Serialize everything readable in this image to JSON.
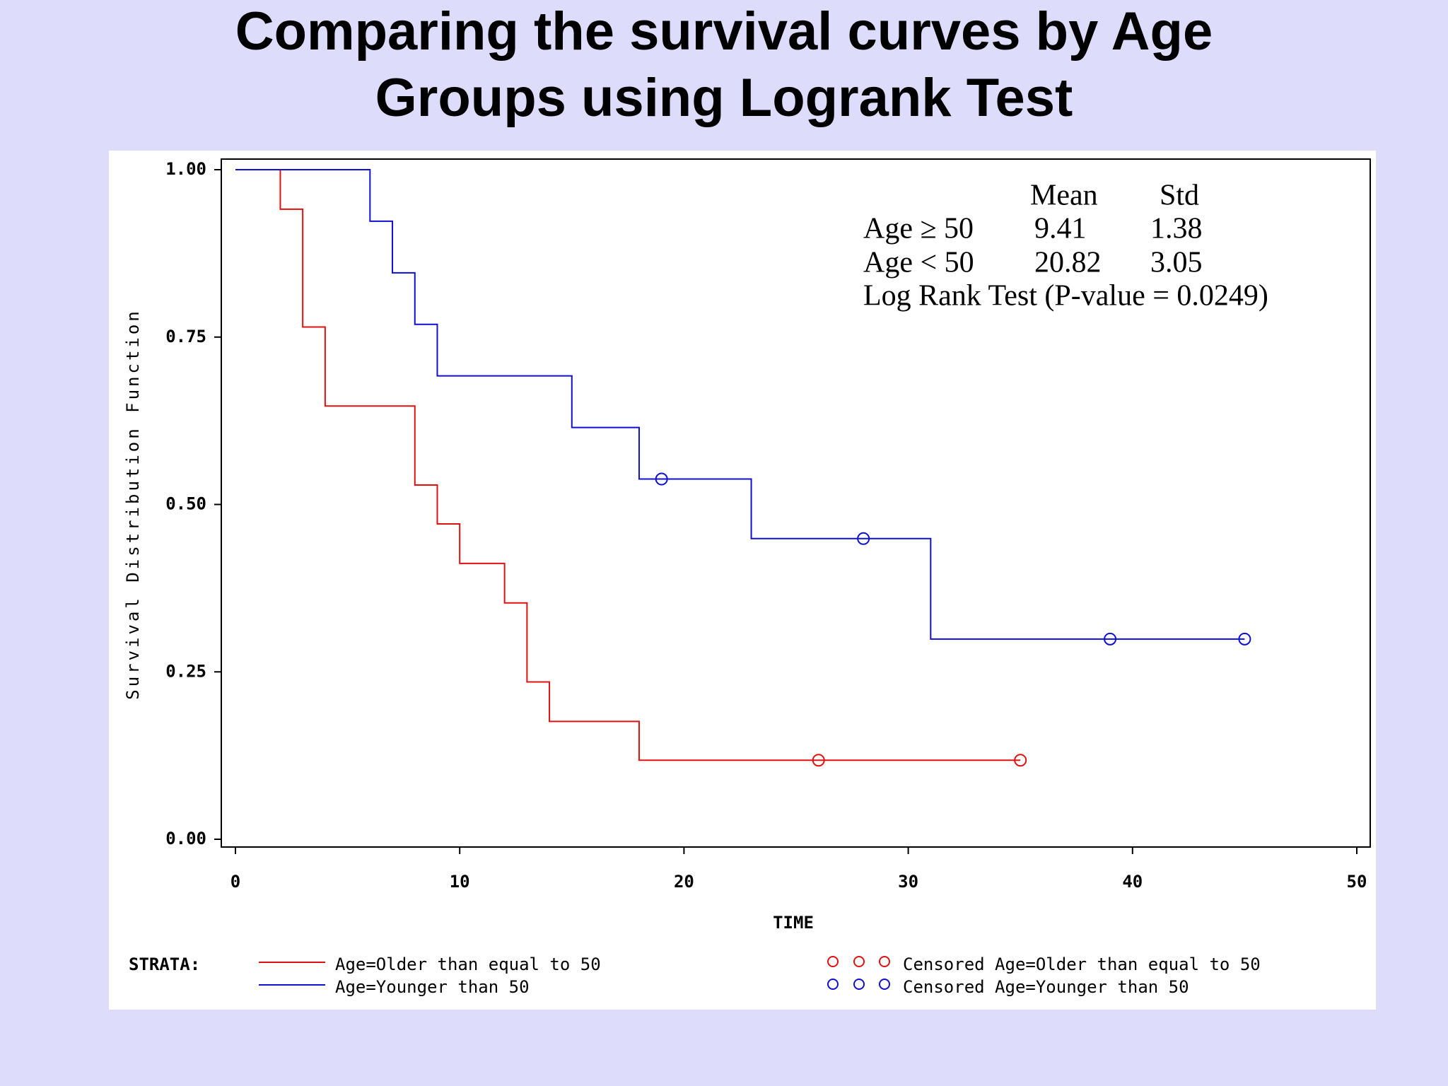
{
  "chart_data": {
    "type": "step",
    "title": "Comparing the survival curves by Age Groups using Logrank Test",
    "x_label": "TIME",
    "y_label": "Survival Distribution Function",
    "xlim": [
      0,
      50
    ],
    "xticks": [
      0,
      10,
      20,
      30,
      40,
      50
    ],
    "ylim": [
      0,
      1
    ],
    "yticks": [
      {
        "value": 0,
        "label": "0.00"
      },
      {
        "value": 0.25,
        "label": "0.25"
      },
      {
        "value": 0.5,
        "label": "0.50"
      },
      {
        "value": 0.75,
        "label": "0.75"
      },
      {
        "value": 1,
        "label": "1.00"
      }
    ],
    "legend_title": "STRATA:",
    "series": [
      {
        "name": "Age=Older than equal to 50",
        "color": "#e01010",
        "x": [
          0,
          2,
          3,
          4,
          8,
          9,
          10,
          12,
          13,
          14,
          18,
          35
        ],
        "values": [
          1,
          0.941,
          0.765,
          0.647,
          0.529,
          0.471,
          0.412,
          0.353,
          0.235,
          0.176,
          0.118,
          0.118
        ],
        "censored_name": "Censored Age=Older than equal to 50",
        "censored_x": [
          26,
          35
        ],
        "censored_values": [
          0.118,
          0.118
        ]
      },
      {
        "name": "Age=Younger than 50",
        "color": "#1010d0",
        "x": [
          0,
          6,
          7,
          8,
          9,
          15,
          18,
          23,
          31,
          45
        ],
        "values": [
          1,
          0.923,
          0.846,
          0.769,
          0.692,
          0.615,
          0.538,
          0.449,
          0.299,
          0.299
        ],
        "censored_name": "Censored Age=Younger than 50",
        "censored_x": [
          19,
          28,
          39,
          45
        ],
        "censored_values": [
          0.538,
          0.449,
          0.299,
          0.299
        ]
      }
    ],
    "annotation": {
      "header": [
        "Mean",
        "Std"
      ],
      "rows": [
        [
          "Age ≥ 50",
          "9.41",
          "1.38"
        ],
        [
          "Age < 50",
          "20.82",
          "3.05"
        ]
      ],
      "footer": "Log Rank Test (P-value = 0.0249)"
    }
  }
}
